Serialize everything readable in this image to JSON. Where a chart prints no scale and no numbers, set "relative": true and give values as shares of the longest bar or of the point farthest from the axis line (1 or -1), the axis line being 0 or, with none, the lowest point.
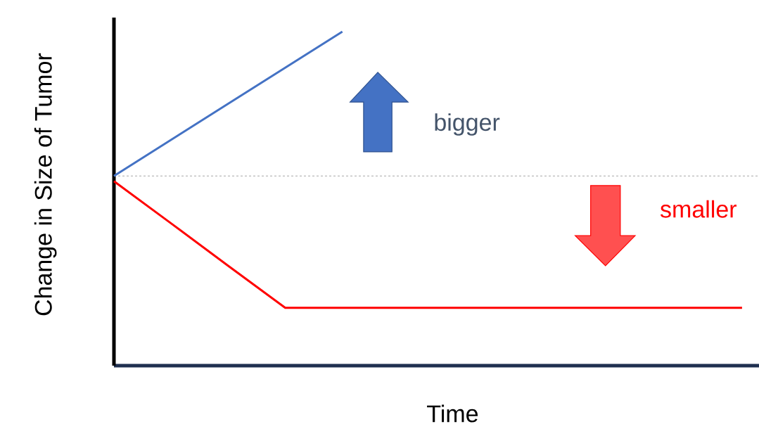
{
  "chart_data": {
    "type": "line",
    "relative": true,
    "xlabel": "Time",
    "ylabel": "Change in Size of Tumor",
    "categories": [
      null,
      null,
      null,
      null,
      null,
      null,
      null,
      null,
      null,
      null,
      null,
      null
    ],
    "annotations": [
      "bigger",
      "smaller"
    ],
    "ref_lines": [
      {
        "axis": "y",
        "value": 0.568,
        "color": "#a6a6a6",
        "line_style": "dashed"
      }
    ],
    "series": [
      {
        "color": "#4472c4",
        "values": [
          0.568,
          0.676,
          0.784,
          0.892,
          1,
          null,
          null,
          null,
          null,
          null,
          null,
          null
        ]
      },
      {
        "color": "#ff0000",
        "values": [
          0.552,
          0.426,
          0.299,
          0.173,
          0.173,
          0.173,
          0.173,
          0.173,
          0.173,
          0.173,
          0.173,
          0.173
        ]
      }
    ]
  }
}
